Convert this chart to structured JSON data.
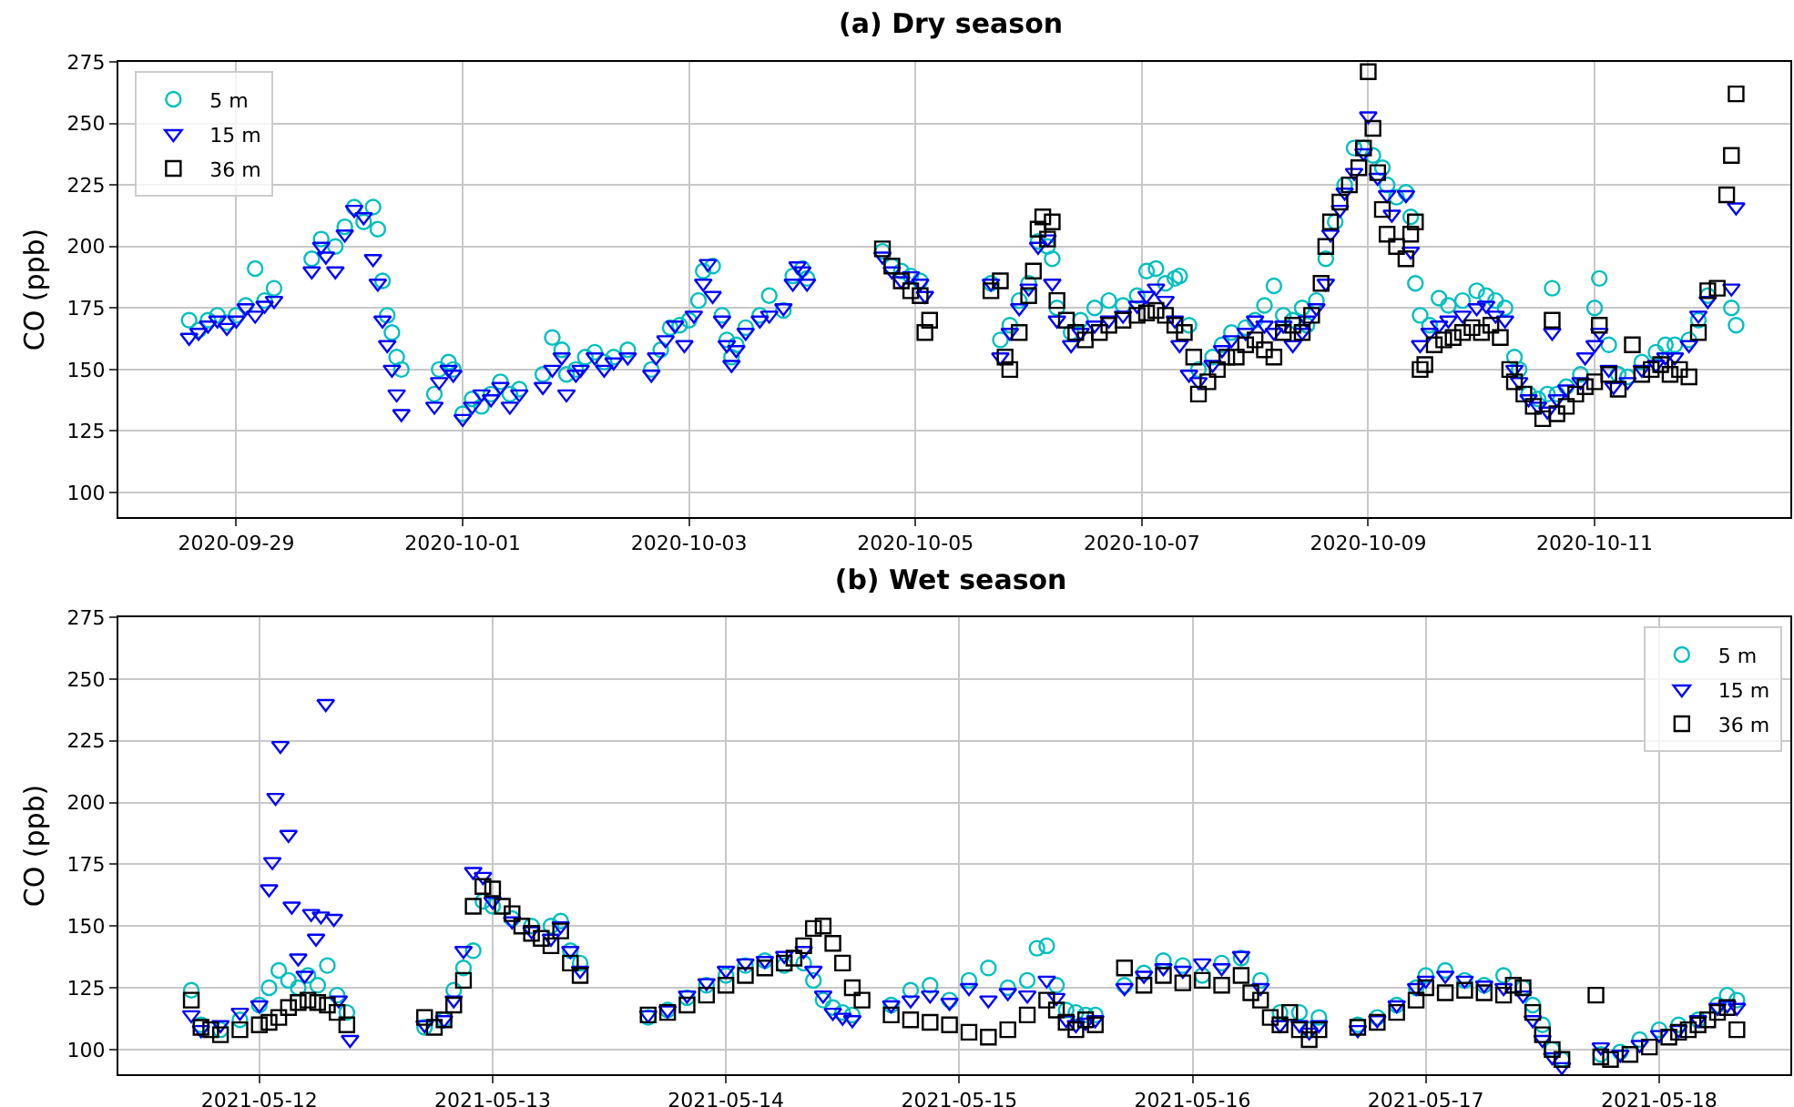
{
  "chart_data": [
    {
      "type": "scatter",
      "title": "(a) Dry season",
      "ylabel": "CO (ppb)",
      "xlim": [
        "2020-09-27T23:00",
        "2020-10-12T17:30"
      ],
      "xticks": [
        "2020-09-29",
        "2020-10-01",
        "2020-10-03",
        "2020-10-05",
        "2020-10-07",
        "2020-10-09",
        "2020-10-11"
      ],
      "ylim": [
        90,
        275
      ],
      "yticks": [
        100,
        125,
        150,
        175,
        200,
        225,
        250,
        275
      ],
      "grid": true,
      "legend": "top left",
      "series": [
        {
          "name": "5 m",
          "color": "#00bfbf",
          "marker": "circle",
          "x": [
            "2020-09-28T14:00",
            "2020-09-28T16:00",
            "2020-09-28T18:00",
            "2020-09-28T20:00",
            "2020-09-28T22:00",
            "2020-09-29T00:00",
            "2020-09-29T02:00",
            "2020-09-29T04:00",
            "2020-09-29T06:00",
            "2020-09-29T08:00",
            "2020-09-29T16:00",
            "2020-09-29T18:00",
            "2020-09-29T21:00",
            "2020-09-29T23:00",
            "2020-09-30T01:00",
            "2020-09-30T03:00",
            "2020-09-30T05:00",
            "2020-09-30T06:00",
            "2020-09-30T07:00",
            "2020-09-30T08:00",
            "2020-09-30T09:00",
            "2020-09-30T10:00",
            "2020-09-30T11:00",
            "2020-09-30T18:00",
            "2020-09-30T19:00",
            "2020-09-30T21:00",
            "2020-09-30T22:00",
            "2020-10-01T00:00",
            "2020-10-01T02:00",
            "2020-10-01T04:00",
            "2020-10-01T06:00",
            "2020-10-01T08:00",
            "2020-10-01T10:00",
            "2020-10-01T12:00",
            "2020-10-01T17:00",
            "2020-10-01T19:00",
            "2020-10-01T21:00",
            "2020-10-01T22:00",
            "2020-10-02T00:00",
            "2020-10-02T02:00",
            "2020-10-02T04:00",
            "2020-10-02T06:00",
            "2020-10-02T08:00",
            "2020-10-02T11:00",
            "2020-10-02T16:00",
            "2020-10-02T18:00",
            "2020-10-02T20:00",
            "2020-10-02T22:00",
            "2020-10-03T00:00",
            "2020-10-03T02:00",
            "2020-10-03T03:00",
            "2020-10-03T05:00",
            "2020-10-03T07:00",
            "2020-10-03T08:00",
            "2020-10-03T09:00",
            "2020-10-03T10:00",
            "2020-10-03T12:00",
            "2020-10-03T15:00",
            "2020-10-03T17:00",
            "2020-10-03T20:00",
            "2020-10-03T22:00",
            "2020-10-04T00:00",
            "2020-10-04T01:00",
            "2020-10-04T17:00",
            "2020-10-04T19:00",
            "2020-10-04T21:00",
            "2020-10-04T23:00",
            "2020-10-05T01:00",
            "2020-10-05T16:00",
            "2020-10-05T18:00",
            "2020-10-05T20:00",
            "2020-10-05T22:00",
            "2020-10-06T00:00",
            "2020-10-06T02:00",
            "2020-10-06T04:00",
            "2020-10-06T05:00",
            "2020-10-06T06:00",
            "2020-10-06T09:00",
            "2020-10-06T11:00",
            "2020-10-06T14:00",
            "2020-10-06T17:00",
            "2020-10-06T20:00",
            "2020-10-06T23:00",
            "2020-10-07T01:00",
            "2020-10-07T03:00",
            "2020-10-07T05:00",
            "2020-10-07T07:00",
            "2020-10-07T08:00",
            "2020-10-07T10:00",
            "2020-10-07T12:00",
            "2020-10-07T15:00",
            "2020-10-07T17:00",
            "2020-10-07T19:00",
            "2020-10-07T22:00",
            "2020-10-08T00:00",
            "2020-10-08T02:00",
            "2020-10-08T04:00",
            "2020-10-08T06:00",
            "2020-10-08T08:00",
            "2020-10-08T10:00",
            "2020-10-08T11:00",
            "2020-10-08T13:00",
            "2020-10-08T15:00",
            "2020-10-08T17:00",
            "2020-10-08T19:00",
            "2020-10-08T21:00",
            "2020-10-08T23:00",
            "2020-10-09T01:00",
            "2020-10-09T03:00",
            "2020-10-09T04:00",
            "2020-10-09T06:00",
            "2020-10-09T08:00",
            "2020-10-09T09:00",
            "2020-10-09T10:00",
            "2020-10-09T11:00",
            "2020-10-09T13:00",
            "2020-10-09T15:00",
            "2020-10-09T17:00",
            "2020-10-09T20:00",
            "2020-10-09T23:00",
            "2020-10-10T01:00",
            "2020-10-10T03:00",
            "2020-10-10T05:00",
            "2020-10-10T07:00",
            "2020-10-10T08:00",
            "2020-10-10T10:00",
            "2020-10-10T12:00",
            "2020-10-10T14:00",
            "2020-10-10T15:00",
            "2020-10-10T16:00",
            "2020-10-10T18:00",
            "2020-10-10T21:00",
            "2020-10-11T00:00",
            "2020-10-11T01:00",
            "2020-10-11T03:00",
            "2020-10-11T05:00",
            "2020-10-11T07:00",
            "2020-10-11T10:00",
            "2020-10-11T13:00",
            "2020-10-11T15:00",
            "2020-10-11T17:00",
            "2020-10-11T20:00",
            "2020-10-11T22:00",
            "2020-10-12T00:00",
            "2020-10-12T05:00",
            "2020-10-12T06:00"
          ],
          "values": [
            170,
            166,
            170,
            172,
            169,
            172,
            176,
            191,
            178,
            183,
            195,
            203,
            200,
            208,
            216,
            210,
            216,
            207,
            186,
            172,
            165,
            155,
            150,
            140,
            150,
            153,
            150,
            132,
            138,
            135,
            140,
            145,
            140,
            142,
            148,
            163,
            158,
            148,
            150,
            155,
            157,
            153,
            155,
            158,
            150,
            158,
            167,
            168,
            170,
            178,
            190,
            192,
            172,
            162,
            155,
            160,
            167,
            172,
            180,
            174,
            188,
            191,
            187,
            198,
            192,
            190,
            188,
            186,
            185,
            162,
            168,
            178,
            185,
            202,
            200,
            195,
            175,
            165,
            170,
            175,
            178,
            176,
            180,
            190,
            191,
            185,
            187,
            188,
            168,
            150,
            155,
            160,
            165,
            167,
            170,
            176,
            184,
            172,
            170,
            175,
            168,
            178,
            195,
            210,
            225,
            240,
            240,
            237,
            232,
            225,
            220,
            222,
            212,
            185,
            172,
            168,
            179,
            176,
            178,
            182,
            180,
            178,
            175,
            155,
            150,
            140,
            138,
            140,
            183,
            140,
            143,
            148,
            175,
            187,
            160,
            148,
            147,
            153,
            157,
            160,
            160,
            162,
            170,
            180,
            175,
            168
          ]
        },
        {
          "name": "15 m",
          "color": "#0000ff",
          "marker": "triangle",
          "x": [
            "2020-09-28T14:00",
            "2020-09-28T16:00",
            "2020-09-28T18:00",
            "2020-09-28T20:00",
            "2020-09-28T22:00",
            "2020-09-29T00:00",
            "2020-09-29T02:00",
            "2020-09-29T04:00",
            "2020-09-29T06:00",
            "2020-09-29T08:00",
            "2020-09-29T16:00",
            "2020-09-29T18:00",
            "2020-09-29T19:00",
            "2020-09-29T21:00",
            "2020-09-29T23:00",
            "2020-09-30T01:00",
            "2020-09-30T03:00",
            "2020-09-30T05:00",
            "2020-09-30T06:00",
            "2020-09-30T07:00",
            "2020-09-30T08:00",
            "2020-09-30T09:00",
            "2020-09-30T10:00",
            "2020-09-30T11:00",
            "2020-09-30T18:00",
            "2020-09-30T19:00",
            "2020-09-30T21:00",
            "2020-09-30T22:00",
            "2020-10-01T00:00",
            "2020-10-01T02:00",
            "2020-10-01T04:00",
            "2020-10-01T06:00",
            "2020-10-01T08:00",
            "2020-10-01T10:00",
            "2020-10-01T12:00",
            "2020-10-01T17:00",
            "2020-10-01T19:00",
            "2020-10-01T21:00",
            "2020-10-01T22:00",
            "2020-10-02T00:00",
            "2020-10-02T01:00",
            "2020-10-02T04:00",
            "2020-10-02T06:00",
            "2020-10-02T08:00",
            "2020-10-02T11:00",
            "2020-10-02T16:00",
            "2020-10-02T17:00",
            "2020-10-02T19:00",
            "2020-10-02T21:00",
            "2020-10-02T23:00",
            "2020-10-03T01:00",
            "2020-10-03T03:00",
            "2020-10-03T04:00",
            "2020-10-03T05:00",
            "2020-10-03T07:00",
            "2020-10-03T08:00",
            "2020-10-03T09:00",
            "2020-10-03T10:00",
            "2020-10-03T12:00",
            "2020-10-03T15:00",
            "2020-10-03T17:00",
            "2020-10-03T20:00",
            "2020-10-03T22:00",
            "2020-10-03T23:00",
            "2020-10-04T00:00",
            "2020-10-04T01:00",
            "2020-10-04T17:00",
            "2020-10-04T19:00",
            "2020-10-04T21:00",
            "2020-10-04T23:00",
            "2020-10-05T01:00",
            "2020-10-05T02:00",
            "2020-10-05T16:00",
            "2020-10-05T18:00",
            "2020-10-05T20:00",
            "2020-10-05T22:00",
            "2020-10-06T00:00",
            "2020-10-06T02:00",
            "2020-10-06T04:00",
            "2020-10-06T05:00",
            "2020-10-06T06:00",
            "2020-10-06T09:00",
            "2020-10-06T11:00",
            "2020-10-06T14:00",
            "2020-10-06T17:00",
            "2020-10-06T20:00",
            "2020-10-06T23:00",
            "2020-10-07T01:00",
            "2020-10-07T03:00",
            "2020-10-07T05:00",
            "2020-10-07T07:00",
            "2020-10-07T08:00",
            "2020-10-07T10:00",
            "2020-10-07T12:00",
            "2020-10-07T15:00",
            "2020-10-07T17:00",
            "2020-10-07T19:00",
            "2020-10-07T22:00",
            "2020-10-08T00:00",
            "2020-10-08T02:00",
            "2020-10-08T04:00",
            "2020-10-08T06:00",
            "2020-10-08T08:00",
            "2020-10-08T10:00",
            "2020-10-08T11:00",
            "2020-10-08T13:00",
            "2020-10-08T15:00",
            "2020-10-08T16:00",
            "2020-10-08T18:00",
            "2020-10-08T19:00",
            "2020-10-08T21:00",
            "2020-10-08T23:00",
            "2020-10-09T00:00",
            "2020-10-09T02:00",
            "2020-10-09T04:00",
            "2020-10-09T05:00",
            "2020-10-09T08:00",
            "2020-10-09T09:00",
            "2020-10-09T11:00",
            "2020-10-09T13:00",
            "2020-10-09T15:00",
            "2020-10-09T17:00",
            "2020-10-09T20:00",
            "2020-10-09T23:00",
            "2020-10-10T01:00",
            "2020-10-10T03:00",
            "2020-10-10T05:00",
            "2020-10-10T07:00",
            "2020-10-10T08:00",
            "2020-10-10T10:00",
            "2020-10-10T12:00",
            "2020-10-10T14:00",
            "2020-10-10T15:00",
            "2020-10-10T16:00",
            "2020-10-10T18:00",
            "2020-10-10T21:00",
            "2020-10-10T22:00",
            "2020-10-11T00:00",
            "2020-10-11T01:00",
            "2020-10-11T03:00",
            "2020-10-11T04:00",
            "2020-10-11T07:00",
            "2020-10-11T10:00",
            "2020-10-11T13:00",
            "2020-10-11T15:00",
            "2020-10-11T17:00",
            "2020-10-11T20:00",
            "2020-10-11T22:00",
            "2020-10-12T00:00",
            "2020-10-12T05:00",
            "2020-10-12T06:00"
          ],
          "values": [
            163,
            165,
            168,
            170,
            167,
            170,
            175,
            172,
            176,
            178,
            190,
            200,
            196,
            190,
            205,
            215,
            212,
            195,
            185,
            170,
            160,
            150,
            140,
            132,
            135,
            145,
            150,
            148,
            130,
            135,
            140,
            138,
            143,
            135,
            140,
            143,
            150,
            155,
            140,
            148,
            150,
            155,
            150,
            153,
            155,
            148,
            155,
            162,
            168,
            160,
            172,
            185,
            193,
            180,
            170,
            160,
            152,
            158,
            165,
            170,
            172,
            175,
            185,
            192,
            190,
            185,
            196,
            190,
            186,
            188,
            185,
            180,
            185,
            155,
            165,
            175,
            183,
            200,
            203,
            185,
            170,
            160,
            165,
            168,
            170,
            172,
            176,
            180,
            183,
            178,
            170,
            160,
            148,
            145,
            152,
            158,
            162,
            165,
            170,
            168,
            165,
            168,
            160,
            165,
            170,
            175,
            185,
            205,
            215,
            222,
            230,
            238,
            253,
            228,
            221,
            213,
            221,
            198,
            160,
            165,
            168,
            170,
            172,
            175,
            176,
            172,
            170,
            150,
            145,
            138,
            135,
            133,
            165,
            138,
            142,
            145,
            155,
            160,
            165,
            150,
            143,
            145,
            150,
            152,
            155,
            155,
            160,
            172,
            178,
            183,
            216
          ]
        },
        {
          "name": "36 m",
          "color": "#000000",
          "marker": "square",
          "x": [
            "2020-10-04T17:00",
            "2020-10-04T19:00",
            "2020-10-04T21:00",
            "2020-10-04T23:00",
            "2020-10-05T01:00",
            "2020-10-05T02:00",
            "2020-10-05T03:00",
            "2020-10-05T16:00",
            "2020-10-05T18:00",
            "2020-10-05T19:00",
            "2020-10-05T20:00",
            "2020-10-05T22:00",
            "2020-10-06T00:00",
            "2020-10-06T01:00",
            "2020-10-06T02:00",
            "2020-10-06T03:00",
            "2020-10-06T04:00",
            "2020-10-06T05:00",
            "2020-10-06T06:00",
            "2020-10-06T08:00",
            "2020-10-06T10:00",
            "2020-10-06T12:00",
            "2020-10-06T15:00",
            "2020-10-06T17:00",
            "2020-10-06T20:00",
            "2020-10-06T23:00",
            "2020-10-07T01:00",
            "2020-10-07T03:00",
            "2020-10-07T05:00",
            "2020-10-07T07:00",
            "2020-10-07T09:00",
            "2020-10-07T11:00",
            "2020-10-07T12:00",
            "2020-10-07T14:00",
            "2020-10-07T16:00",
            "2020-10-07T18:00",
            "2020-10-07T20:00",
            "2020-10-07T22:00",
            "2020-10-08T00:00",
            "2020-10-08T02:00",
            "2020-10-08T04:00",
            "2020-10-08T06:00",
            "2020-10-08T08:00",
            "2020-10-08T10:00",
            "2020-10-08T12:00",
            "2020-10-08T14:00",
            "2020-10-08T15:00",
            "2020-10-08T16:00",
            "2020-10-08T18:00",
            "2020-10-08T20:00",
            "2020-10-08T22:00",
            "2020-10-08T23:00",
            "2020-10-09T00:00",
            "2020-10-09T01:00",
            "2020-10-09T02:00",
            "2020-10-09T03:00",
            "2020-10-09T04:00",
            "2020-10-09T06:00",
            "2020-10-09T08:00",
            "2020-10-09T09:00",
            "2020-10-09T10:00",
            "2020-10-09T11:00",
            "2020-10-09T12:00",
            "2020-10-09T14:00",
            "2020-10-09T16:00",
            "2020-10-09T18:00",
            "2020-10-09T20:00",
            "2020-10-09T22:00",
            "2020-10-10T00:00",
            "2020-10-10T02:00",
            "2020-10-10T04:00",
            "2020-10-10T06:00",
            "2020-10-10T07:00",
            "2020-10-10T09:00",
            "2020-10-10T11:00",
            "2020-10-10T13:00",
            "2020-10-10T15:00",
            "2020-10-10T16:00",
            "2020-10-10T18:00",
            "2020-10-10T20:00",
            "2020-10-10T22:00",
            "2020-10-11T00:00",
            "2020-10-11T01:00",
            "2020-10-11T03:00",
            "2020-10-11T05:00",
            "2020-10-11T08:00",
            "2020-10-11T10:00",
            "2020-10-11T12:00",
            "2020-10-11T14:00",
            "2020-10-11T16:00",
            "2020-10-11T18:00",
            "2020-10-11T20:00",
            "2020-10-11T22:00",
            "2020-10-12T00:00",
            "2020-10-12T02:00",
            "2020-10-12T04:00",
            "2020-10-12T05:00",
            "2020-10-12T06:00"
          ],
          "values": [
            199,
            192,
            186,
            182,
            180,
            165,
            170,
            182,
            186,
            155,
            150,
            165,
            180,
            190,
            207,
            212,
            203,
            210,
            178,
            170,
            165,
            162,
            165,
            168,
            170,
            172,
            173,
            174,
            172,
            168,
            165,
            155,
            140,
            145,
            150,
            155,
            155,
            160,
            162,
            158,
            155,
            165,
            168,
            165,
            172,
            185,
            200,
            210,
            218,
            225,
            232,
            240,
            271,
            248,
            230,
            215,
            205,
            200,
            195,
            205,
            210,
            150,
            152,
            160,
            162,
            163,
            165,
            167,
            165,
            168,
            163,
            150,
            145,
            140,
            135,
            130,
            170,
            132,
            135,
            140,
            143,
            145,
            168,
            148,
            142,
            160,
            148,
            150,
            152,
            148,
            150,
            147,
            165,
            182,
            183,
            221,
            237,
            262
          ]
        }
      ]
    },
    {
      "type": "scatter",
      "title": "(b) Wet season",
      "ylabel": "CO (ppb)",
      "xlim": [
        "2021-05-11T09:30",
        "2021-05-18T13:30"
      ],
      "xticks": [
        "2021-05-12",
        "2021-05-13",
        "2021-05-14",
        "2021-05-15",
        "2021-05-16",
        "2021-05-17",
        "2021-05-18"
      ],
      "ylim": [
        90,
        275
      ],
      "yticks": [
        100,
        125,
        150,
        175,
        200,
        225,
        250,
        275
      ],
      "grid": true,
      "legend": "top right",
      "series": [
        {
          "name": "5 m",
          "color": "#00bfbf",
          "marker": "circle",
          "x": [
            "2021-05-11T17:00",
            "2021-05-11T18:00",
            "2021-05-11T20:00",
            "2021-05-11T22:00",
            "2021-05-12T00:00",
            "2021-05-12T01:00",
            "2021-05-12T02:00",
            "2021-05-12T03:00",
            "2021-05-12T04:00",
            "2021-05-12T05:00",
            "2021-05-12T06:00",
            "2021-05-12T07:00",
            "2021-05-12T08:00",
            "2021-05-12T09:00",
            "2021-05-12T17:00",
            "2021-05-12T19:00",
            "2021-05-12T20:00",
            "2021-05-12T21:00",
            "2021-05-12T22:00",
            "2021-05-12T23:00",
            "2021-05-13T00:00",
            "2021-05-13T02:00",
            "2021-05-13T04:00",
            "2021-05-13T06:00",
            "2021-05-13T07:00",
            "2021-05-13T08:00",
            "2021-05-13T09:00",
            "2021-05-13T16:00",
            "2021-05-13T18:00",
            "2021-05-13T20:00",
            "2021-05-13T22:00",
            "2021-05-14T00:00",
            "2021-05-14T02:00",
            "2021-05-14T04:00",
            "2021-05-14T06:00",
            "2021-05-14T08:00",
            "2021-05-14T09:00",
            "2021-05-14T10:00",
            "2021-05-14T11:00",
            "2021-05-14T12:00",
            "2021-05-14T13:00",
            "2021-05-14T17:00",
            "2021-05-14T19:00",
            "2021-05-14T21:00",
            "2021-05-14T23:00",
            "2021-05-15T01:00",
            "2021-05-15T03:00",
            "2021-05-15T05:00",
            "2021-05-15T07:00",
            "2021-05-15T08:00",
            "2021-05-15T09:00",
            "2021-05-15T10:00",
            "2021-05-15T11:00",
            "2021-05-15T12:00",
            "2021-05-15T13:00",
            "2021-05-15T14:00",
            "2021-05-15T17:00",
            "2021-05-15T19:00",
            "2021-05-15T21:00",
            "2021-05-15T23:00",
            "2021-05-16T01:00",
            "2021-05-16T03:00",
            "2021-05-16T05:00",
            "2021-05-16T07:00",
            "2021-05-16T09:00",
            "2021-05-16T11:00",
            "2021-05-16T12:00",
            "2021-05-16T13:00",
            "2021-05-16T17:00",
            "2021-05-16T19:00",
            "2021-05-16T21:00",
            "2021-05-16T23:00",
            "2021-05-17T00:00",
            "2021-05-17T02:00",
            "2021-05-17T04:00",
            "2021-05-17T06:00",
            "2021-05-17T08:00",
            "2021-05-17T10:00",
            "2021-05-17T11:00",
            "2021-05-17T12:00",
            "2021-05-17T13:00",
            "2021-05-17T14:00",
            "2021-05-17T18:00",
            "2021-05-17T20:00",
            "2021-05-17T22:00",
            "2021-05-18T00:00",
            "2021-05-18T02:00",
            "2021-05-18T04:00",
            "2021-05-18T06:00",
            "2021-05-18T07:00",
            "2021-05-18T08:00"
          ],
          "values": [
            124,
            110,
            108,
            112,
            118,
            125,
            132,
            128,
            125,
            130,
            126,
            134,
            122,
            115,
            109,
            112,
            124,
            133,
            140,
            160,
            158,
            153,
            150,
            150,
            152,
            140,
            135,
            113,
            116,
            121,
            126,
            130,
            134,
            136,
            134,
            135,
            128,
            120,
            117,
            115,
            114,
            118,
            124,
            126,
            120,
            128,
            133,
            125,
            128,
            141,
            142,
            126,
            116,
            115,
            114,
            114,
            126,
            131,
            136,
            134,
            130,
            135,
            137,
            128,
            115,
            115,
            108,
            113,
            110,
            113,
            118,
            125,
            130,
            132,
            128,
            126,
            130,
            125,
            118,
            110,
            100,
            96,
            98,
            99,
            104,
            108,
            110,
            112,
            118,
            122,
            120
          ]
        },
        {
          "name": "15 m",
          "color": "#0000ff",
          "marker": "triangle",
          "x": [
            "2021-05-11T17:00",
            "2021-05-11T18:00",
            "2021-05-11T20:00",
            "2021-05-11T22:00",
            "2021-05-12T00:00",
            "2021-05-12T01:00",
            "2021-05-12T01:20",
            "2021-05-12T01:40",
            "2021-05-12T02:10",
            "2021-05-12T03:00",
            "2021-05-12T03:20",
            "2021-05-12T04:00",
            "2021-05-12T04:40",
            "2021-05-12T05:20",
            "2021-05-12T05:50",
            "2021-05-12T06:20",
            "2021-05-12T06:50",
            "2021-05-12T07:40",
            "2021-05-12T08:10",
            "2021-05-12T09:20",
            "2021-05-12T17:00",
            "2021-05-12T19:00",
            "2021-05-12T20:00",
            "2021-05-12T21:00",
            "2021-05-12T22:00",
            "2021-05-12T23:00",
            "2021-05-13T00:00",
            "2021-05-13T02:00",
            "2021-05-13T04:00",
            "2021-05-13T06:00",
            "2021-05-13T07:00",
            "2021-05-13T08:00",
            "2021-05-13T09:00",
            "2021-05-13T16:00",
            "2021-05-13T18:00",
            "2021-05-13T20:00",
            "2021-05-13T22:00",
            "2021-05-14T00:00",
            "2021-05-14T02:00",
            "2021-05-14T04:00",
            "2021-05-14T06:00",
            "2021-05-14T08:00",
            "2021-05-14T09:00",
            "2021-05-14T10:00",
            "2021-05-14T11:00",
            "2021-05-14T12:00",
            "2021-05-14T13:00",
            "2021-05-14T17:00",
            "2021-05-14T19:00",
            "2021-05-14T21:00",
            "2021-05-14T23:00",
            "2021-05-15T01:00",
            "2021-05-15T03:00",
            "2021-05-15T05:00",
            "2021-05-15T07:00",
            "2021-05-15T09:00",
            "2021-05-15T10:00",
            "2021-05-15T11:00",
            "2021-05-15T12:00",
            "2021-05-15T13:00",
            "2021-05-15T14:00",
            "2021-05-15T17:00",
            "2021-05-15T19:00",
            "2021-05-15T21:00",
            "2021-05-15T23:00",
            "2021-05-16T01:00",
            "2021-05-16T03:00",
            "2021-05-16T05:00",
            "2021-05-16T07:00",
            "2021-05-16T09:00",
            "2021-05-16T11:00",
            "2021-05-16T12:00",
            "2021-05-16T13:00",
            "2021-05-16T17:00",
            "2021-05-16T19:00",
            "2021-05-16T21:00",
            "2021-05-16T23:00",
            "2021-05-17T00:00",
            "2021-05-17T02:00",
            "2021-05-17T04:00",
            "2021-05-17T06:00",
            "2021-05-17T08:00",
            "2021-05-17T10:00",
            "2021-05-17T11:00",
            "2021-05-17T12:00",
            "2021-05-17T13:00",
            "2021-05-17T14:00",
            "2021-05-17T18:00",
            "2021-05-17T20:00",
            "2021-05-17T22:00",
            "2021-05-18T00:00",
            "2021-05-18T02:00",
            "2021-05-18T04:00",
            "2021-05-18T06:00",
            "2021-05-18T07:00",
            "2021-05-18T08:00"
          ],
          "values": [
            114,
            108,
            110,
            115,
            118,
            165,
            176,
            202,
            223,
            187,
            158,
            137,
            130,
            155,
            145,
            154,
            240,
            153,
            120,
            104,
            110,
            112,
            120,
            140,
            172,
            170,
            160,
            152,
            148,
            145,
            150,
            140,
            132,
            114,
            116,
            122,
            127,
            132,
            135,
            136,
            138,
            140,
            132,
            122,
            115,
            113,
            112,
            118,
            120,
            122,
            119,
            125,
            120,
            123,
            122,
            128,
            121,
            112,
            110,
            111,
            112,
            125,
            130,
            133,
            132,
            135,
            133,
            138,
            125,
            110,
            110,
            107,
            110,
            108,
            112,
            118,
            125,
            128,
            130,
            128,
            126,
            125,
            122,
            112,
            104,
            97,
            93,
            101,
            98,
            102,
            106,
            108,
            112,
            117,
            118,
            117
          ]
        },
        {
          "name": "36 m",
          "color": "#000000",
          "marker": "square",
          "x": [
            "2021-05-11T17:00",
            "2021-05-11T18:00",
            "2021-05-11T19:00",
            "2021-05-11T20:00",
            "2021-05-11T22:00",
            "2021-05-12T00:00",
            "2021-05-12T01:00",
            "2021-05-12T02:00",
            "2021-05-12T03:00",
            "2021-05-12T04:00",
            "2021-05-12T05:00",
            "2021-05-12T06:00",
            "2021-05-12T07:00",
            "2021-05-12T08:00",
            "2021-05-12T09:00",
            "2021-05-12T17:00",
            "2021-05-12T18:00",
            "2021-05-12T19:00",
            "2021-05-12T20:00",
            "2021-05-12T21:00",
            "2021-05-12T22:00",
            "2021-05-12T23:00",
            "2021-05-13T00:00",
            "2021-05-13T01:00",
            "2021-05-13T02:00",
            "2021-05-13T03:00",
            "2021-05-13T04:00",
            "2021-05-13T05:00",
            "2021-05-13T06:00",
            "2021-05-13T07:00",
            "2021-05-13T08:00",
            "2021-05-13T09:00",
            "2021-05-13T16:00",
            "2021-05-13T18:00",
            "2021-05-13T20:00",
            "2021-05-13T22:00",
            "2021-05-14T00:00",
            "2021-05-14T02:00",
            "2021-05-14T04:00",
            "2021-05-14T06:00",
            "2021-05-14T07:00",
            "2021-05-14T08:00",
            "2021-05-14T09:00",
            "2021-05-14T10:00",
            "2021-05-14T11:00",
            "2021-05-14T12:00",
            "2021-05-14T13:00",
            "2021-05-14T14:00",
            "2021-05-14T17:00",
            "2021-05-14T19:00",
            "2021-05-14T21:00",
            "2021-05-14T23:00",
            "2021-05-15T01:00",
            "2021-05-15T03:00",
            "2021-05-15T05:00",
            "2021-05-15T07:00",
            "2021-05-15T09:00",
            "2021-05-15T10:00",
            "2021-05-15T11:00",
            "2021-05-15T12:00",
            "2021-05-15T13:00",
            "2021-05-15T14:00",
            "2021-05-15T17:00",
            "2021-05-15T19:00",
            "2021-05-15T21:00",
            "2021-05-15T23:00",
            "2021-05-16T01:00",
            "2021-05-16T03:00",
            "2021-05-16T05:00",
            "2021-05-16T06:00",
            "2021-05-16T07:00",
            "2021-05-16T08:00",
            "2021-05-16T09:00",
            "2021-05-16T10:00",
            "2021-05-16T11:00",
            "2021-05-16T12:00",
            "2021-05-16T13:00",
            "2021-05-16T17:00",
            "2021-05-16T19:00",
            "2021-05-16T21:00",
            "2021-05-16T23:00",
            "2021-05-17T00:00",
            "2021-05-17T02:00",
            "2021-05-17T04:00",
            "2021-05-17T06:00",
            "2021-05-17T08:00",
            "2021-05-17T09:00",
            "2021-05-17T10:00",
            "2021-05-17T11:00",
            "2021-05-17T12:00",
            "2021-05-17T13:00",
            "2021-05-17T14:00",
            "2021-05-17T17:30",
            "2021-05-17T18:00",
            "2021-05-17T19:00",
            "2021-05-17T21:00",
            "2021-05-17T23:00",
            "2021-05-18T01:00",
            "2021-05-18T02:00",
            "2021-05-18T03:00",
            "2021-05-18T04:00",
            "2021-05-18T05:00",
            "2021-05-18T06:00",
            "2021-05-18T07:00",
            "2021-05-18T08:00"
          ],
          "values": [
            120,
            109,
            108,
            106,
            108,
            110,
            111,
            113,
            117,
            119,
            120,
            119,
            118,
            115,
            110,
            113,
            109,
            112,
            118,
            128,
            158,
            166,
            165,
            158,
            155,
            150,
            147,
            145,
            142,
            148,
            135,
            130,
            114,
            115,
            118,
            122,
            126,
            130,
            133,
            135,
            137,
            142,
            149,
            150,
            143,
            135,
            125,
            120,
            114,
            112,
            111,
            110,
            107,
            105,
            108,
            114,
            120,
            116,
            111,
            108,
            112,
            110,
            133,
            126,
            130,
            127,
            128,
            126,
            130,
            123,
            120,
            113,
            110,
            115,
            108,
            104,
            108,
            109,
            111,
            115,
            120,
            125,
            123,
            124,
            123,
            122,
            126,
            125,
            115,
            106,
            100,
            96,
            122,
            97,
            96,
            98,
            101,
            105,
            107,
            108,
            110,
            112,
            115,
            117,
            108
          ]
        }
      ]
    }
  ]
}
